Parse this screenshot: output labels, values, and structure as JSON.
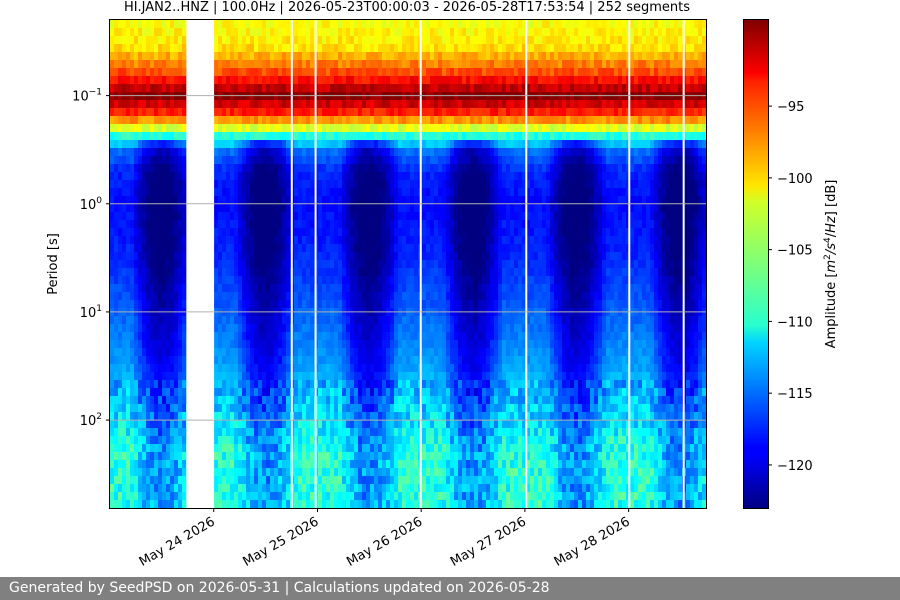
{
  "chart_data": {
    "type": "heatmap",
    "title": "HI.JAN2..HNZ | 100.0Hz | 2026-05-23T00:00:03 - 2026-05-28T17:53:54 | 252 segments",
    "ylabel": "Period [s]",
    "y_scale": "log",
    "y_direction": "inverted",
    "ylim": [
      0.02,
      650
    ],
    "y_ticks": [
      {
        "value": 0.1,
        "base": "10",
        "exp": "−1"
      },
      {
        "value": 1,
        "base": "10",
        "exp": "0"
      },
      {
        "value": 10,
        "base": "10",
        "exp": "1"
      },
      {
        "value": 100,
        "base": "10",
        "exp": "2"
      }
    ],
    "xlim": [
      "2026-05-23T00:00:03",
      "2026-05-28T17:53:54"
    ],
    "x_ticks": [
      {
        "value": "2026-05-24",
        "label": "May 24 2026"
      },
      {
        "value": "2026-05-25",
        "label": "May 25 2026"
      },
      {
        "value": "2026-05-26",
        "label": "May 26 2026"
      },
      {
        "value": "2026-05-27",
        "label": "May 27 2026"
      },
      {
        "value": "2026-05-28",
        "label": "May 28 2026"
      }
    ],
    "grid": "horizontal",
    "colormap": "jet",
    "colorbar": {
      "label_parts": [
        "Amplitude [",
        "m",
        "2",
        "/s",
        "4",
        "/",
        "Hz",
        "] [dB]"
      ],
      "range": [
        -123,
        -89
      ],
      "ticks": [
        "−95",
        "−100",
        "−105",
        "−110",
        "−115",
        "−120"
      ],
      "tick_values": [
        -95,
        -100,
        -105,
        -110,
        -115,
        -120
      ]
    },
    "data_gaps": [
      {
        "start": "2026-05-23T17:40:00",
        "end": "2026-05-24T00:05:00"
      },
      {
        "start": "2026-05-24T17:50:00",
        "end": "2026-05-24T18:05:00"
      },
      {
        "start": "2026-05-24T23:20:00",
        "end": "2026-05-24T23:45:00"
      },
      {
        "start": "2026-05-25T23:40:00",
        "end": "2026-05-26T00:05:00"
      },
      {
        "start": "2026-05-27T00:05:00",
        "end": "2026-05-27T00:25:00"
      },
      {
        "start": "2026-05-27T23:55:00",
        "end": "2026-05-28T00:10:00"
      },
      {
        "start": "2026-05-28T12:30:00",
        "end": "2026-05-28T12:45:00"
      }
    ],
    "spectral_profile": {
      "description_periods_s": [
        0.02,
        0.035,
        0.06,
        0.1,
        0.15,
        0.2,
        0.3,
        0.5,
        1,
        3,
        10,
        30,
        100,
        200,
        650
      ],
      "median_db": [
        -102,
        -101,
        -96,
        -89,
        -95,
        -103,
        -118,
        -121,
        -122,
        -121,
        -119,
        -117,
        -114,
        -112,
        -112
      ]
    },
    "day_night_variation": "quieter from ~06 to ~18 hours UTC each day at periods 0.3-30 s"
  },
  "footer": {
    "text": "Generated by SeedPSD on 2026-05-31 | Calculations updated on 2026-05-28"
  }
}
